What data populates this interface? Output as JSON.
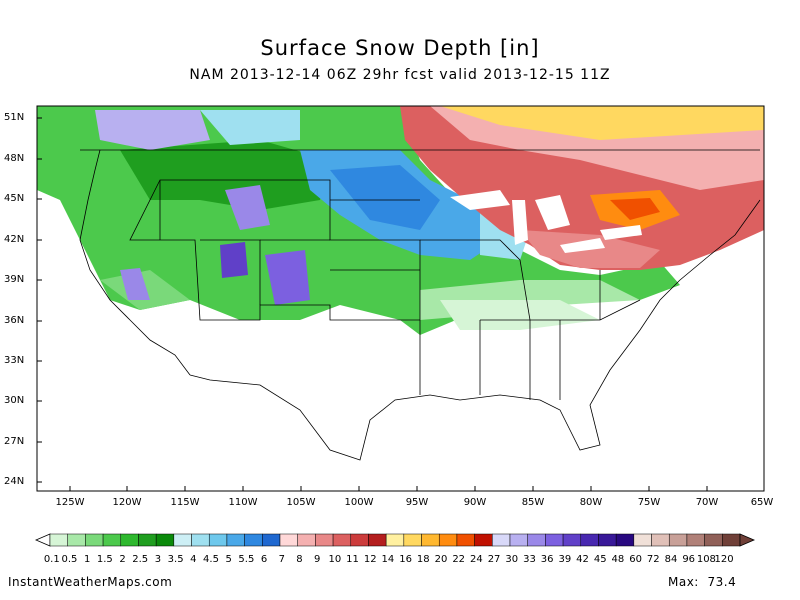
{
  "title": "Surface Snow Depth [in]",
  "subtitle": "NAM 2013-12-14 06Z 29hr fcst valid 2013-12-15 11Z",
  "lat_labels": [
    "51N",
    "48N",
    "45N",
    "42N",
    "39N",
    "36N",
    "33N",
    "30N",
    "27N",
    "24N"
  ],
  "lon_labels": [
    "125W",
    "120W",
    "115W",
    "110W",
    "105W",
    "100W",
    "95W",
    "90W",
    "85W",
    "80W",
    "75W",
    "70W",
    "65W"
  ],
  "colorbar": {
    "labels": [
      "0.1",
      "0.5",
      "1",
      "1.5",
      "2",
      "2.5",
      "3",
      "3.5",
      "4",
      "4.5",
      "5",
      "5.5",
      "6",
      "7",
      "8",
      "9",
      "10",
      "11",
      "12",
      "14",
      "16",
      "18",
      "20",
      "22",
      "24",
      "27",
      "30",
      "33",
      "36",
      "39",
      "42",
      "45",
      "48",
      "60",
      "72",
      "84",
      "96",
      "108",
      "120"
    ],
    "colors": [
      "#d6f5d6",
      "#a8e8a8",
      "#7ad97a",
      "#4cc94c",
      "#2eb82e",
      "#1f9e1f",
      "#0a8a0a",
      "#cdeff5",
      "#9fe0f0",
      "#6ec8ec",
      "#4aa8e8",
      "#2f88e0",
      "#1f68d0",
      "#ffd8d8",
      "#f4b0b0",
      "#e88888",
      "#dc6060",
      "#cc3c3c",
      "#b41e1e",
      "#fff0a0",
      "#ffd860",
      "#ffb830",
      "#ff8c10",
      "#f05000",
      "#c01000",
      "#d8d8f8",
      "#b8b0f0",
      "#9a88e8",
      "#7c60e0",
      "#6040c8",
      "#4828b0",
      "#381898",
      "#280880",
      "#f0e0d8",
      "#e0c0b8",
      "#c8a098",
      "#b08078",
      "#906058",
      "#704038"
    ]
  },
  "footer": {
    "site": "InstantWeatherMaps.com",
    "max_label": "Max:",
    "max_value": "73.4"
  }
}
